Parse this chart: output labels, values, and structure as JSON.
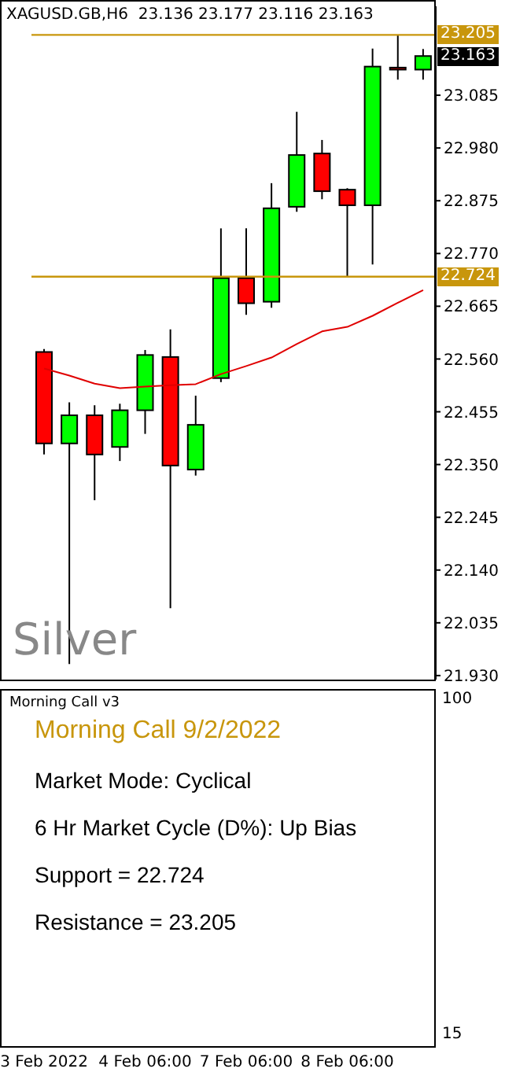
{
  "chart_data": [
    {
      "type": "candlestick",
      "title": "XAGUSD.GB,H6  23.136 23.177 23.116 23.163",
      "categories": [
        "3 Feb 2022",
        null,
        null,
        null,
        "4 Feb 06:00",
        null,
        null,
        null,
        "7 Feb 06:00",
        null,
        null,
        null,
        "8 Feb 06:00",
        null,
        null,
        null
      ],
      "ohlc": [
        [
          22.574,
          22.58,
          22.37,
          22.392
        ],
        [
          22.392,
          22.474,
          21.953,
          22.448
        ],
        [
          22.448,
          22.468,
          22.279,
          22.37
        ],
        [
          22.385,
          22.471,
          22.357,
          22.458
        ],
        [
          22.458,
          22.578,
          22.411,
          22.568
        ],
        [
          22.564,
          22.619,
          22.064,
          22.348
        ],
        [
          22.34,
          22.487,
          22.328,
          22.429
        ],
        [
          22.522,
          22.82,
          22.514,
          22.721
        ],
        [
          22.721,
          22.82,
          22.648,
          22.671
        ],
        [
          22.674,
          22.91,
          22.662,
          22.86
        ],
        [
          22.863,
          23.052,
          22.853,
          22.966
        ],
        [
          22.969,
          22.996,
          22.878,
          22.894
        ],
        [
          22.897,
          22.9,
          22.725,
          22.866
        ],
        [
          22.866,
          23.178,
          22.748,
          23.142
        ],
        [
          23.14,
          23.205,
          23.116,
          23.136
        ],
        [
          23.136,
          23.177,
          23.116,
          23.163
        ]
      ],
      "series": [
        {
          "type": "line",
          "color": "#e00000",
          "values": [
            22.541,
            22.527,
            22.511,
            22.502,
            22.505,
            22.508,
            22.51,
            22.53,
            22.546,
            22.563,
            22.59,
            22.615,
            22.624,
            22.646,
            22.672,
            22.697
          ]
        }
      ],
      "ylim": [
        21.922,
        23.262
      ],
      "yticks": [
        {
          "value": 21.93,
          "label": "21.930"
        },
        22.035,
        {
          "value": 22.14,
          "label": "22.140"
        },
        22.245,
        {
          "value": 22.35,
          "label": "22.350"
        },
        22.455,
        {
          "value": 22.56,
          "label": "22.560"
        },
        22.665,
        {
          "value": 22.77,
          "label": "22.770"
        },
        22.875,
        {
          "value": 22.98,
          "label": "22.980"
        },
        23.085
      ],
      "ref_lines": [
        {
          "axis": "y",
          "value": 22.724,
          "label": "22.724",
          "color": "#c8960c"
        },
        {
          "axis": "y",
          "value": 23.205,
          "label": "23.205",
          "color": "#c8960c"
        }
      ],
      "annotations": [
        {
          "text": "23.163",
          "y": 23.163
        },
        "Silver"
      ],
      "tick_labels": "y",
      "grid": false,
      "legend": false,
      "marker": "none"
    },
    {
      "type": "other",
      "title": "Morning Call v3",
      "annotations": [
        "Morning Call 9/2/2022",
        "Market Mode: Cyclical",
        "6 Hr Market Cycle (D%): Up Bias",
        "Support = 22.724",
        "Resistance = 23.205",
        "100",
        "15"
      ]
    }
  ]
}
